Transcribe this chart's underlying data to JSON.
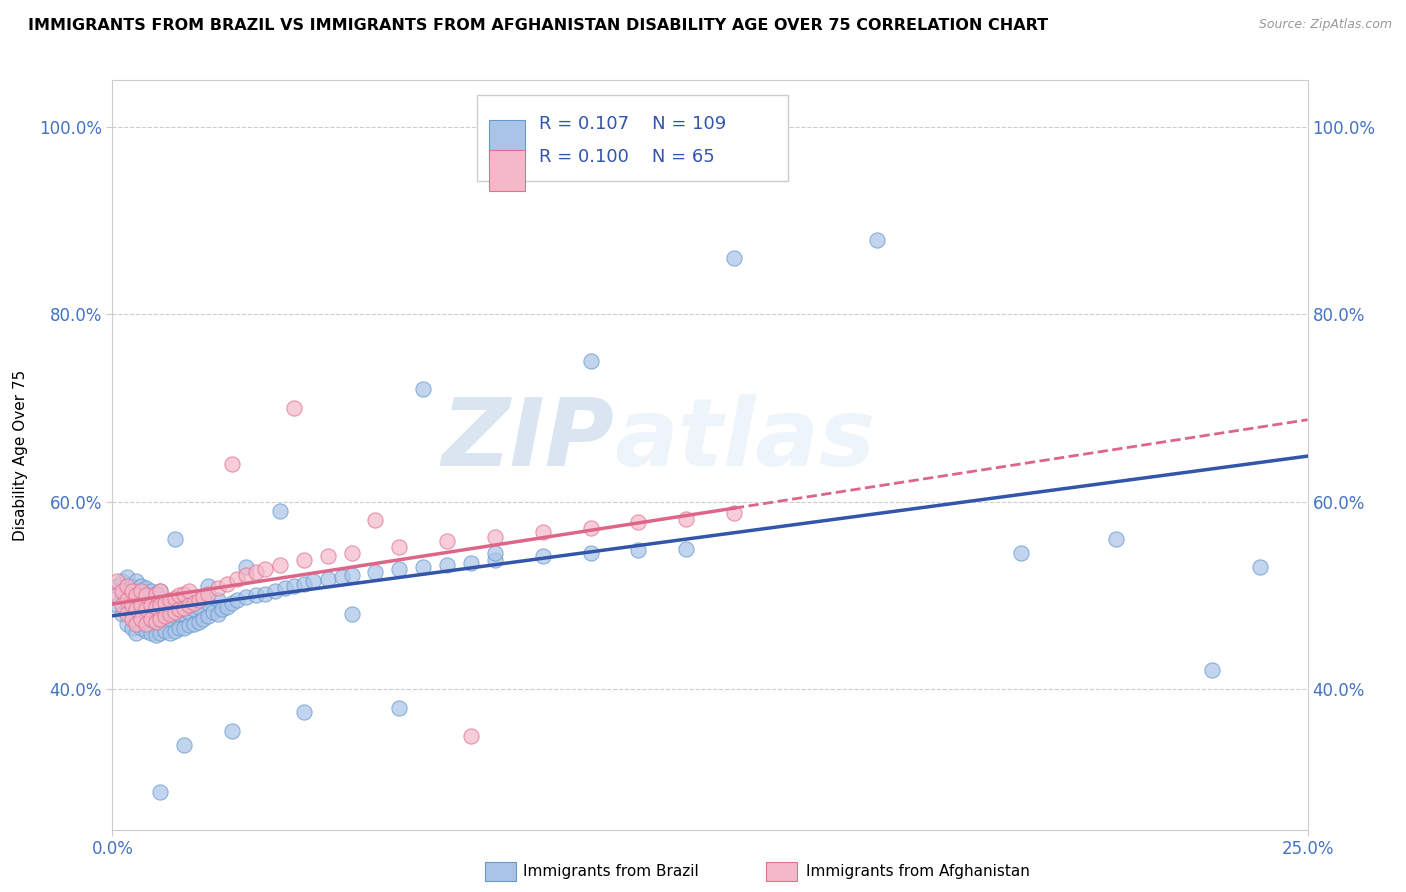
{
  "title": "IMMIGRANTS FROM BRAZIL VS IMMIGRANTS FROM AFGHANISTAN DISABILITY AGE OVER 75 CORRELATION CHART",
  "source": "Source: ZipAtlas.com",
  "ylabel": "Disability Age Over 75",
  "x_min": 0.0,
  "x_max": 0.25,
  "y_min": 0.25,
  "y_max": 1.05,
  "x_ticks": [
    0.0,
    0.25
  ],
  "x_tick_labels": [
    "0.0%",
    "25.0%"
  ],
  "y_ticks": [
    0.4,
    0.6,
    0.8,
    1.0
  ],
  "y_tick_labels": [
    "40.0%",
    "60.0%",
    "80.0%",
    "100.0%"
  ],
  "brazil_color": "#aac4e8",
  "brazil_edge_color": "#6699cc",
  "afghanistan_color": "#f5b8c8",
  "afghanistan_edge_color": "#e07090",
  "brazil_R": 0.107,
  "brazil_N": 109,
  "afghanistan_R": 0.1,
  "afghanistan_N": 65,
  "brazil_line_color": "#3355aa",
  "afghanistan_line_color": "#dd6688",
  "watermark_zip": "ZIP",
  "watermark_atlas": "atlas",
  "legend_brazil": "Immigrants from Brazil",
  "legend_afghanistan": "Immigrants from Afghanistan",
  "brazil_x": [
    0.001,
    0.001,
    0.002,
    0.002,
    0.002,
    0.003,
    0.003,
    0.003,
    0.003,
    0.004,
    0.004,
    0.004,
    0.004,
    0.005,
    0.005,
    0.005,
    0.005,
    0.005,
    0.006,
    0.006,
    0.006,
    0.006,
    0.007,
    0.007,
    0.007,
    0.007,
    0.008,
    0.008,
    0.008,
    0.008,
    0.009,
    0.009,
    0.009,
    0.009,
    0.01,
    0.01,
    0.01,
    0.01,
    0.011,
    0.011,
    0.011,
    0.012,
    0.012,
    0.012,
    0.013,
    0.013,
    0.013,
    0.014,
    0.014,
    0.014,
    0.015,
    0.015,
    0.015,
    0.016,
    0.016,
    0.017,
    0.017,
    0.018,
    0.018,
    0.019,
    0.02,
    0.02,
    0.021,
    0.022,
    0.022,
    0.023,
    0.024,
    0.025,
    0.026,
    0.028,
    0.03,
    0.032,
    0.034,
    0.036,
    0.038,
    0.04,
    0.042,
    0.045,
    0.048,
    0.05,
    0.055,
    0.06,
    0.065,
    0.07,
    0.075,
    0.08,
    0.09,
    0.1,
    0.11,
    0.12,
    0.013,
    0.02,
    0.028,
    0.035,
    0.05,
    0.065,
    0.08,
    0.1,
    0.13,
    0.16,
    0.19,
    0.21,
    0.23,
    0.24,
    0.06,
    0.04,
    0.025,
    0.015,
    0.01
  ],
  "brazil_y": [
    0.49,
    0.51,
    0.48,
    0.5,
    0.515,
    0.47,
    0.49,
    0.505,
    0.52,
    0.465,
    0.48,
    0.495,
    0.51,
    0.46,
    0.475,
    0.49,
    0.505,
    0.515,
    0.465,
    0.48,
    0.495,
    0.51,
    0.462,
    0.478,
    0.492,
    0.508,
    0.46,
    0.475,
    0.49,
    0.505,
    0.458,
    0.472,
    0.488,
    0.502,
    0.46,
    0.475,
    0.49,
    0.505,
    0.462,
    0.478,
    0.492,
    0.46,
    0.475,
    0.49,
    0.462,
    0.478,
    0.492,
    0.465,
    0.48,
    0.495,
    0.465,
    0.48,
    0.495,
    0.468,
    0.482,
    0.47,
    0.485,
    0.472,
    0.488,
    0.475,
    0.478,
    0.492,
    0.482,
    0.48,
    0.495,
    0.485,
    0.488,
    0.492,
    0.495,
    0.498,
    0.5,
    0.502,
    0.505,
    0.508,
    0.51,
    0.512,
    0.515,
    0.518,
    0.52,
    0.522,
    0.525,
    0.528,
    0.53,
    0.533,
    0.535,
    0.538,
    0.542,
    0.545,
    0.548,
    0.55,
    0.56,
    0.51,
    0.53,
    0.59,
    0.48,
    0.72,
    0.545,
    0.75,
    0.86,
    0.88,
    0.545,
    0.56,
    0.42,
    0.53,
    0.38,
    0.375,
    0.355,
    0.34,
    0.29
  ],
  "afghanistan_x": [
    0.001,
    0.001,
    0.002,
    0.002,
    0.003,
    0.003,
    0.003,
    0.004,
    0.004,
    0.004,
    0.005,
    0.005,
    0.005,
    0.006,
    0.006,
    0.006,
    0.007,
    0.007,
    0.007,
    0.008,
    0.008,
    0.009,
    0.009,
    0.009,
    0.01,
    0.01,
    0.01,
    0.011,
    0.011,
    0.012,
    0.012,
    0.013,
    0.013,
    0.014,
    0.014,
    0.015,
    0.015,
    0.016,
    0.016,
    0.017,
    0.018,
    0.019,
    0.02,
    0.022,
    0.024,
    0.026,
    0.028,
    0.03,
    0.032,
    0.035,
    0.04,
    0.045,
    0.05,
    0.06,
    0.07,
    0.08,
    0.09,
    0.1,
    0.11,
    0.12,
    0.13,
    0.025,
    0.038,
    0.055,
    0.075
  ],
  "afghanistan_y": [
    0.5,
    0.515,
    0.49,
    0.505,
    0.48,
    0.495,
    0.51,
    0.475,
    0.49,
    0.505,
    0.47,
    0.485,
    0.5,
    0.475,
    0.49,
    0.505,
    0.47,
    0.485,
    0.5,
    0.475,
    0.49,
    0.472,
    0.488,
    0.502,
    0.475,
    0.49,
    0.505,
    0.478,
    0.492,
    0.48,
    0.495,
    0.482,
    0.497,
    0.485,
    0.5,
    0.487,
    0.502,
    0.49,
    0.505,
    0.492,
    0.495,
    0.498,
    0.502,
    0.508,
    0.512,
    0.518,
    0.522,
    0.525,
    0.528,
    0.532,
    0.538,
    0.542,
    0.545,
    0.552,
    0.558,
    0.562,
    0.568,
    0.572,
    0.578,
    0.582,
    0.588,
    0.64,
    0.7,
    0.58,
    0.35
  ]
}
